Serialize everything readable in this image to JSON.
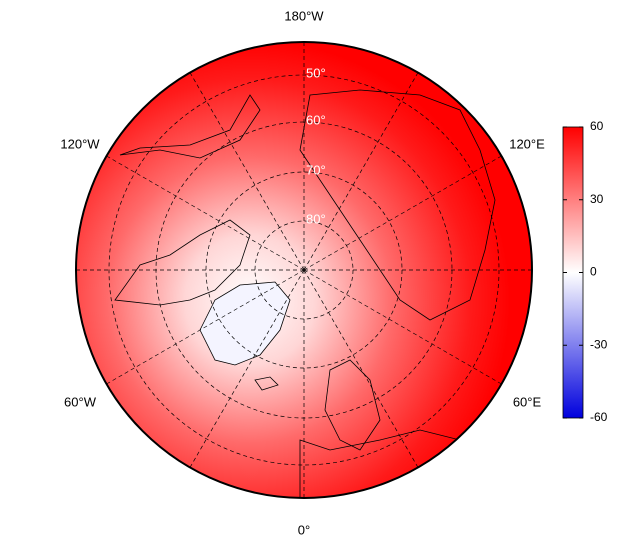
{
  "map": {
    "longitude_labels": {
      "top": "180°W",
      "upper_right": "120°E",
      "lower_right": "60°E",
      "bottom": "0°",
      "lower_left": "60°W",
      "upper_left": "120°W"
    },
    "latitude_labels": [
      "50°",
      "60°",
      "70°",
      "80°"
    ],
    "colorbar": {
      "lim": [
        -60,
        60
      ],
      "ticks": [
        -60,
        -30,
        0,
        30,
        60
      ]
    }
  }
}
